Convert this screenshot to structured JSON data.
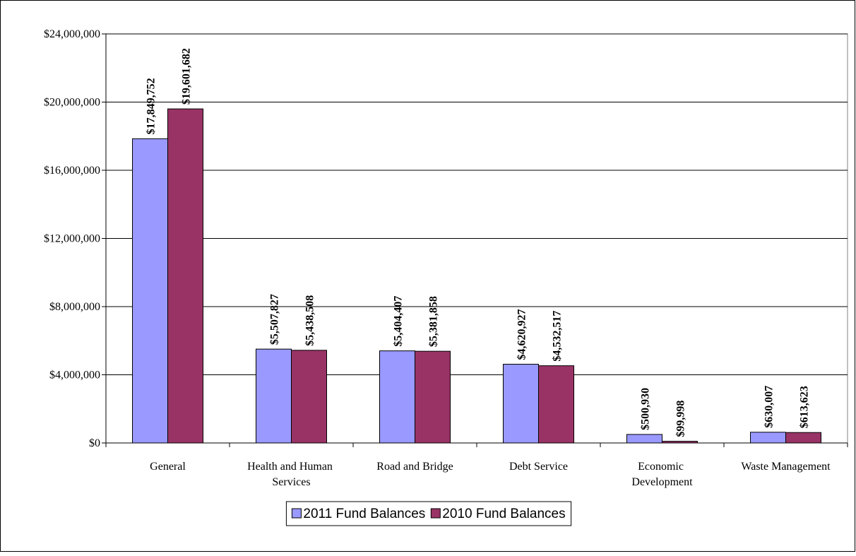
{
  "chart_data": {
    "type": "bar",
    "categories": [
      "General",
      "Health and Human Services",
      "Road and Bridge",
      "Debt Service",
      "Economic Development",
      "Waste Management"
    ],
    "series": [
      {
        "name": "2011 Fund Balances",
        "color": "#9999ff",
        "values": [
          17849752,
          5507827,
          5404407,
          4620927,
          500930,
          630007
        ],
        "value_labels": [
          "$17,849,752",
          "$5,507,827",
          "$5,404,407",
          "$4,620,927",
          "$500,930",
          "$630,007"
        ]
      },
      {
        "name": "2010 Fund Balances",
        "color": "#993366",
        "values": [
          19601682,
          5438508,
          5381858,
          4532517,
          99998,
          613623
        ],
        "value_labels": [
          "$19,601,682",
          "$5,438,508",
          "$5,381,858",
          "$4,532,517",
          "$99,998",
          "$613,623"
        ]
      }
    ],
    "ylim": [
      0,
      24000000
    ],
    "yticks": [
      {
        "value": 0,
        "label": "$0"
      },
      {
        "value": 4000000,
        "label": "$4,000,000"
      },
      {
        "value": 8000000,
        "label": "$8,000,000"
      },
      {
        "value": 12000000,
        "label": "$12,000,000"
      },
      {
        "value": 16000000,
        "label": "$16,000,000"
      },
      {
        "value": 20000000,
        "label": "$20,000,000"
      },
      {
        "value": 24000000,
        "label": "$24,000,000"
      }
    ],
    "grid": true,
    "legend": "bottom"
  }
}
